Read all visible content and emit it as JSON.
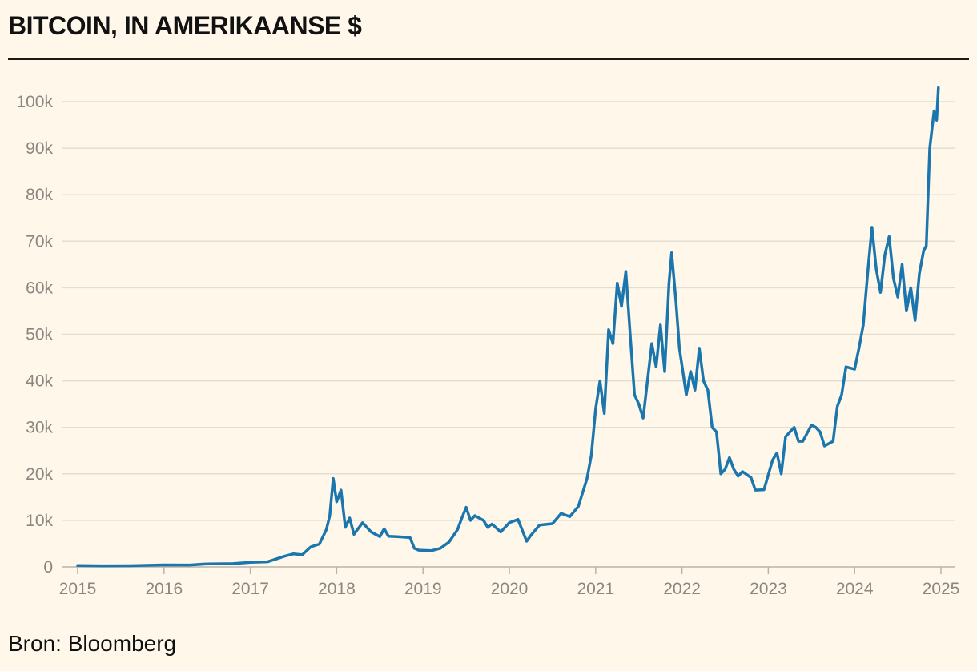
{
  "title": "BITCOIN, IN AMERIKAANSE $",
  "source": "Bron: Bloomberg",
  "colors": {
    "background": "#fff7ea",
    "line": "#1b76ad",
    "grid": "#e4ddd2",
    "axis": "#b9b3aa",
    "tick_label": "#8a8680"
  },
  "chart_data": {
    "type": "line",
    "title": "BITCOIN, IN AMERIKAANSE $",
    "xlabel": "",
    "ylabel": "",
    "xlim": [
      2015.0,
      2025.0
    ],
    "ylim": [
      0,
      100000
    ],
    "grid": true,
    "x_ticks": [
      2015,
      2016,
      2017,
      2018,
      2019,
      2020,
      2021,
      2022,
      2023,
      2024,
      2025
    ],
    "x_tick_labels": [
      "2015",
      "2016",
      "2017",
      "2018",
      "2019",
      "2020",
      "2021",
      "2022",
      "2023",
      "2024",
      "2025"
    ],
    "y_ticks": [
      0,
      10000,
      20000,
      30000,
      40000,
      50000,
      60000,
      70000,
      80000,
      90000,
      100000
    ],
    "y_tick_labels": [
      "0",
      "10k",
      "20k",
      "30k",
      "40k",
      "50k",
      "60k",
      "70k",
      "80k",
      "90k",
      "100k"
    ],
    "series": [
      {
        "values": [
          [
            2015.0,
            300
          ],
          [
            2015.3,
            240
          ],
          [
            2015.6,
            260
          ],
          [
            2015.9,
            380
          ],
          [
            2016.0,
            430
          ],
          [
            2016.3,
            420
          ],
          [
            2016.5,
            650
          ],
          [
            2016.8,
            700
          ],
          [
            2017.0,
            1000
          ],
          [
            2017.2,
            1100
          ],
          [
            2017.4,
            2300
          ],
          [
            2017.5,
            2800
          ],
          [
            2017.6,
            2600
          ],
          [
            2017.7,
            4300
          ],
          [
            2017.8,
            4900
          ],
          [
            2017.88,
            8000
          ],
          [
            2017.92,
            11000
          ],
          [
            2017.96,
            19000
          ],
          [
            2018.0,
            14000
          ],
          [
            2018.05,
            16500
          ],
          [
            2018.1,
            8500
          ],
          [
            2018.15,
            10500
          ],
          [
            2018.2,
            7000
          ],
          [
            2018.3,
            9500
          ],
          [
            2018.4,
            7500
          ],
          [
            2018.5,
            6500
          ],
          [
            2018.55,
            8200
          ],
          [
            2018.6,
            6600
          ],
          [
            2018.7,
            6500
          ],
          [
            2018.85,
            6300
          ],
          [
            2018.9,
            4000
          ],
          [
            2018.95,
            3600
          ],
          [
            2019.1,
            3500
          ],
          [
            2019.2,
            4000
          ],
          [
            2019.3,
            5300
          ],
          [
            2019.4,
            8000
          ],
          [
            2019.45,
            10500
          ],
          [
            2019.5,
            12800
          ],
          [
            2019.55,
            10000
          ],
          [
            2019.6,
            11000
          ],
          [
            2019.7,
            10000
          ],
          [
            2019.75,
            8500
          ],
          [
            2019.8,
            9200
          ],
          [
            2019.9,
            7500
          ],
          [
            2020.0,
            9500
          ],
          [
            2020.1,
            10200
          ],
          [
            2020.2,
            5500
          ],
          [
            2020.25,
            6800
          ],
          [
            2020.35,
            9000
          ],
          [
            2020.5,
            9300
          ],
          [
            2020.6,
            11500
          ],
          [
            2020.7,
            10800
          ],
          [
            2020.8,
            13000
          ],
          [
            2020.9,
            19000
          ],
          [
            2020.95,
            24000
          ],
          [
            2021.0,
            34000
          ],
          [
            2021.05,
            40000
          ],
          [
            2021.1,
            33000
          ],
          [
            2021.15,
            51000
          ],
          [
            2021.2,
            48000
          ],
          [
            2021.25,
            61000
          ],
          [
            2021.3,
            56000
          ],
          [
            2021.35,
            63500
          ],
          [
            2021.4,
            50000
          ],
          [
            2021.45,
            37000
          ],
          [
            2021.5,
            35000
          ],
          [
            2021.55,
            32000
          ],
          [
            2021.6,
            40000
          ],
          [
            2021.65,
            48000
          ],
          [
            2021.7,
            43000
          ],
          [
            2021.75,
            52000
          ],
          [
            2021.8,
            42000
          ],
          [
            2021.85,
            61000
          ],
          [
            2021.88,
            67500
          ],
          [
            2021.93,
            57000
          ],
          [
            2021.97,
            47000
          ],
          [
            2022.05,
            37000
          ],
          [
            2022.1,
            42000
          ],
          [
            2022.15,
            38000
          ],
          [
            2022.2,
            47000
          ],
          [
            2022.25,
            40000
          ],
          [
            2022.3,
            38000
          ],
          [
            2022.35,
            30000
          ],
          [
            2022.4,
            29000
          ],
          [
            2022.45,
            20000
          ],
          [
            2022.5,
            21000
          ],
          [
            2022.55,
            23500
          ],
          [
            2022.6,
            21000
          ],
          [
            2022.65,
            19500
          ],
          [
            2022.7,
            20500
          ],
          [
            2022.8,
            19200
          ],
          [
            2022.85,
            16500
          ],
          [
            2022.95,
            16600
          ],
          [
            2023.05,
            23000
          ],
          [
            2023.1,
            24500
          ],
          [
            2023.15,
            20000
          ],
          [
            2023.2,
            28000
          ],
          [
            2023.3,
            30000
          ],
          [
            2023.35,
            27000
          ],
          [
            2023.4,
            27000
          ],
          [
            2023.5,
            30500
          ],
          [
            2023.55,
            30000
          ],
          [
            2023.6,
            29000
          ],
          [
            2023.65,
            26000
          ],
          [
            2023.75,
            27000
          ],
          [
            2023.8,
            34500
          ],
          [
            2023.85,
            37000
          ],
          [
            2023.9,
            43000
          ],
          [
            2024.0,
            42500
          ],
          [
            2024.05,
            47000
          ],
          [
            2024.1,
            52000
          ],
          [
            2024.15,
            63000
          ],
          [
            2024.2,
            73000
          ],
          [
            2024.25,
            64000
          ],
          [
            2024.3,
            59000
          ],
          [
            2024.35,
            67000
          ],
          [
            2024.4,
            71000
          ],
          [
            2024.45,
            62000
          ],
          [
            2024.5,
            58000
          ],
          [
            2024.55,
            65000
          ],
          [
            2024.6,
            55000
          ],
          [
            2024.65,
            60000
          ],
          [
            2024.7,
            53000
          ],
          [
            2024.75,
            63000
          ],
          [
            2024.8,
            68000
          ],
          [
            2024.83,
            69000
          ],
          [
            2024.87,
            90000
          ],
          [
            2024.92,
            98000
          ],
          [
            2024.95,
            96000
          ],
          [
            2024.97,
            103000
          ]
        ]
      }
    ]
  }
}
